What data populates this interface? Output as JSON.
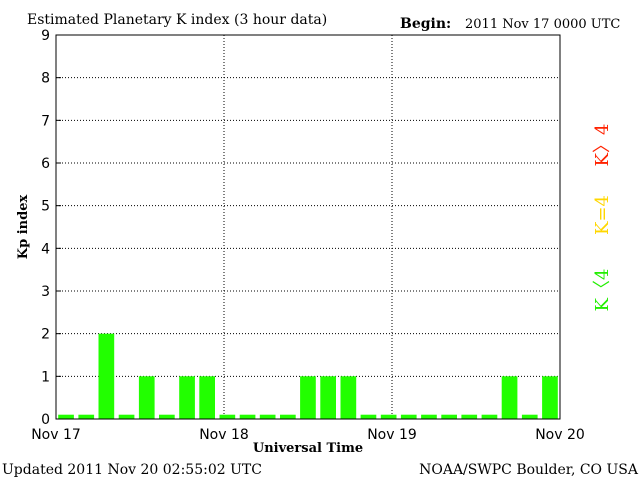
{
  "header": {
    "title": "Estimated Planetary K index (3 hour data)",
    "begin_label": "Begin:",
    "begin_value": "2011 Nov 17 0000 UTC"
  },
  "footer": {
    "updated": "Updated 2011 Nov 20 02:55:02 UTC",
    "source": "NOAA/SWPC Boulder, CO USA"
  },
  "legend": {
    "high": "K〉4",
    "equal": "K=4",
    "low": "K〈4",
    "colors": {
      "high": "#ff2200",
      "equal": "#ffd700",
      "low": "#22ee00"
    }
  },
  "chart_data": {
    "type": "bar",
    "title": "Estimated Planetary K index (3 hour data)",
    "xlabel": "Universal Time",
    "ylabel": "Kp index",
    "ylim": [
      0,
      9
    ],
    "yticks": [
      "0",
      "1",
      "2",
      "3",
      "4",
      "5",
      "6",
      "7",
      "8",
      "9"
    ],
    "xticks": [
      "Nov 17",
      "Nov 18",
      "Nov 19",
      "Nov 20"
    ],
    "grid": true,
    "bar_color": "#22ff00",
    "values": [
      0.1,
      0.1,
      2,
      0.1,
      1,
      0.1,
      1,
      1,
      0.1,
      0.1,
      0.1,
      0.1,
      1,
      1,
      1,
      0.1,
      0.1,
      0.1,
      0.1,
      0.1,
      0.1,
      0.1,
      1,
      0.1,
      1
    ]
  }
}
